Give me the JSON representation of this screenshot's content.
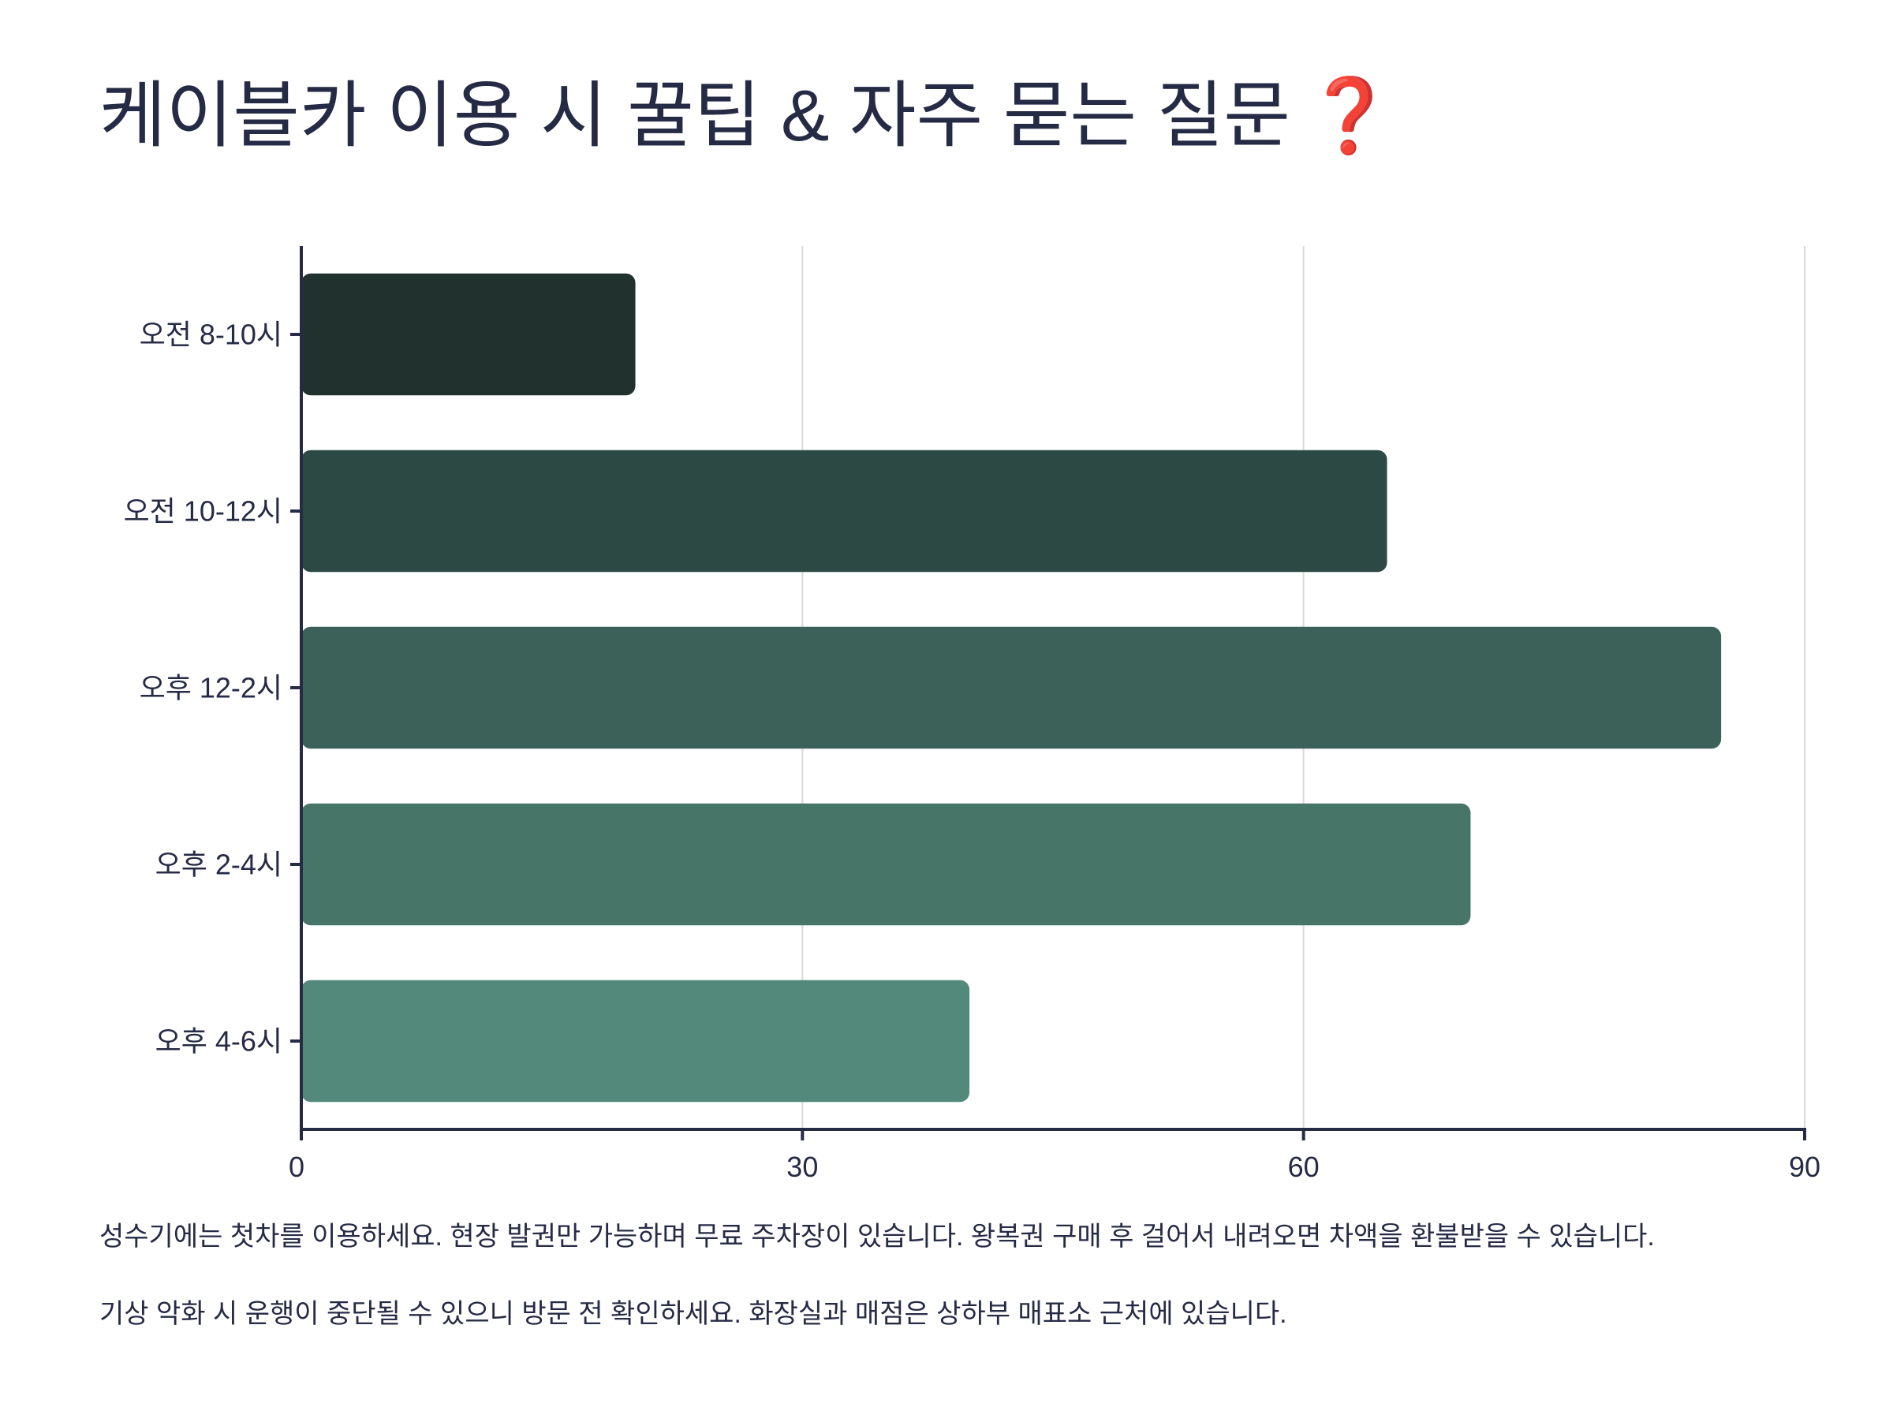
{
  "title": {
    "text": "케이블카 이용 시 꿀팁 & 자주 묻는 질문",
    "icon": "red-question-mark-icon",
    "icon_glyph": "❓",
    "icon_color": "#e8413b"
  },
  "chart_data": {
    "type": "bar",
    "orientation": "horizontal",
    "categories": [
      "오전 8-10시",
      "오전 10-12시",
      "오후 12-2시",
      "오후 2-4시",
      "오후 4-6시"
    ],
    "values": [
      20,
      65,
      85,
      70,
      40
    ],
    "colors": [
      "#21312d",
      "#2c4944",
      "#3b6158",
      "#477568",
      "#53897a"
    ],
    "xlim": [
      0,
      90
    ],
    "xticks": [
      "0",
      "30",
      "60",
      "90"
    ],
    "xtick_values": [
      0,
      30,
      60,
      90
    ],
    "grid": true,
    "legend": "none",
    "axis_color": "#262b45",
    "grid_color": "#d9d9d9"
  },
  "notes": [
    "성수기에는 첫차를 이용하세요. 현장 발권만 가능하며 무료 주차장이 있습니다. 왕복권 구매 후 걸어서 내려오면 차액을 환불받을 수 있습니다.",
    "기상 악화 시 운행이 중단될 수 있으니 방문 전 확인하세요. 화장실과 매점은 상하부 매표소 근처에 있습니다."
  ]
}
